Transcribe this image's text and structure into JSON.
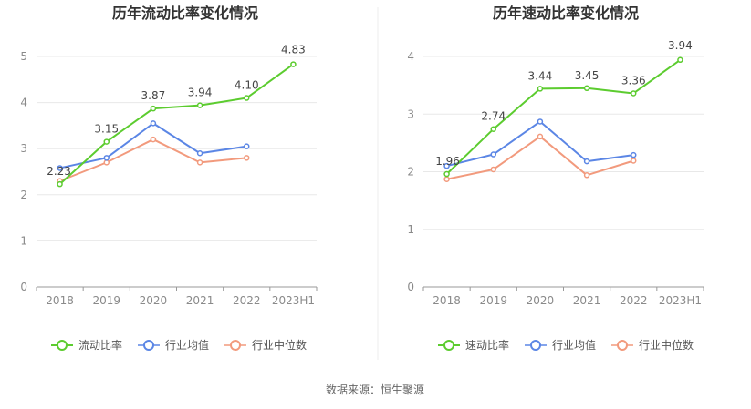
{
  "footer": {
    "source": "数据来源：恒生聚源"
  },
  "colors": {
    "green": "#5ccc2f",
    "blue": "#5b86e5",
    "orange": "#f29a7d",
    "grid": "#e8e8e8",
    "axis": "#999999",
    "divider": "#eeeeee"
  },
  "chart_data": [
    {
      "type": "line",
      "title": "历年流动比率变化情况",
      "categories": [
        "2018",
        "2019",
        "2020",
        "2021",
        "2022",
        "2023H1"
      ],
      "ylim": [
        0,
        5
      ],
      "yticks": [
        0,
        1,
        2,
        3,
        4,
        5
      ],
      "grid": true,
      "legend_position": "bottom",
      "series": [
        {
          "name": "流动比率",
          "color": "#5ccc2f",
          "values": [
            2.23,
            3.15,
            3.87,
            3.94,
            4.1,
            4.83
          ],
          "labels": [
            "2.23",
            "3.15",
            "3.87",
            "3.94",
            "4.10",
            "4.83"
          ]
        },
        {
          "name": "行业均值",
          "color": "#5b86e5",
          "values": [
            2.58,
            2.8,
            3.55,
            2.9,
            3.05,
            null
          ]
        },
        {
          "name": "行业中位数",
          "color": "#f29a7d",
          "values": [
            2.3,
            2.7,
            3.2,
            2.7,
            2.8,
            null
          ]
        }
      ]
    },
    {
      "type": "line",
      "title": "历年速动比率变化情况",
      "categories": [
        "2018",
        "2019",
        "2020",
        "2021",
        "2022",
        "2023H1"
      ],
      "ylim": [
        0,
        4
      ],
      "yticks": [
        0,
        1,
        2,
        3,
        4
      ],
      "grid": true,
      "legend_position": "bottom",
      "series": [
        {
          "name": "速动比率",
          "color": "#5ccc2f",
          "values": [
            1.96,
            2.74,
            3.44,
            3.45,
            3.36,
            3.94
          ],
          "labels": [
            "1.96",
            "2.74",
            "3.44",
            "3.45",
            "3.36",
            "3.94"
          ]
        },
        {
          "name": "行业均值",
          "color": "#5b86e5",
          "values": [
            2.1,
            2.3,
            2.87,
            2.18,
            2.29,
            null
          ]
        },
        {
          "name": "行业中位数",
          "color": "#f29a7d",
          "values": [
            1.87,
            2.04,
            2.61,
            1.94,
            2.19,
            null
          ]
        }
      ]
    }
  ]
}
